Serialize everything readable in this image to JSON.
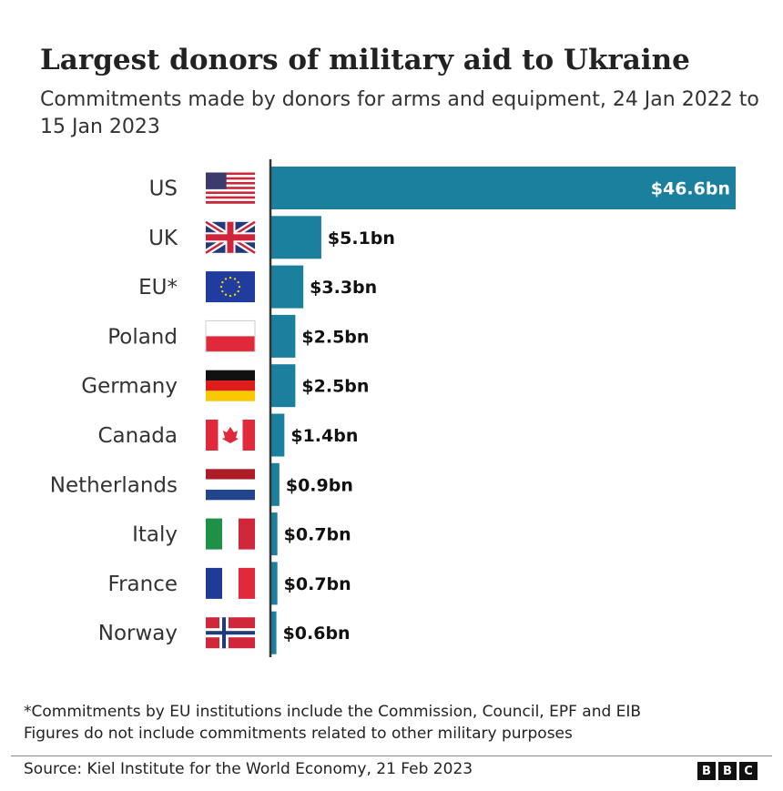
{
  "chart_data": {
    "type": "bar",
    "orientation": "horizontal",
    "title": "Largest donors of military aid to Ukraine",
    "subtitle": "Commitments made by donors for arms and equipment, 24 Jan 2022 to 15 Jan 2023",
    "categories": [
      "US",
      "UK",
      "EU*",
      "Poland",
      "Germany",
      "Canada",
      "Netherlands",
      "Italy",
      "France",
      "Norway"
    ],
    "values": [
      46.6,
      5.1,
      3.3,
      2.5,
      2.5,
      1.4,
      0.9,
      0.7,
      0.7,
      0.6
    ],
    "labels": [
      "$46.6bn",
      "$5.1bn",
      "$3.3bn",
      "$2.5bn",
      "$2.5bn",
      "$1.4bn",
      "$0.9bn",
      "$0.7bn",
      "$0.7bn",
      "$0.6bn"
    ],
    "unit": "$bn",
    "xlim": [
      0,
      46.6
    ],
    "grid": false,
    "bar_color": "#1b7f9e",
    "flags": [
      "us-flag-icon",
      "uk-flag-icon",
      "eu-flag-icon",
      "poland-flag-icon",
      "germany-flag-icon",
      "canada-flag-icon",
      "netherlands-flag-icon",
      "italy-flag-icon",
      "france-flag-icon",
      "norway-flag-icon"
    ]
  },
  "footnotes": [
    "*Commitments by EU institutions include the Commission, Council, EPF and EIB",
    "Figures do not include commitments related to other military purposes"
  ],
  "source": "Source: Kiel Institute for the World Economy, 21 Feb 2023",
  "logo": [
    "B",
    "B",
    "C"
  ]
}
